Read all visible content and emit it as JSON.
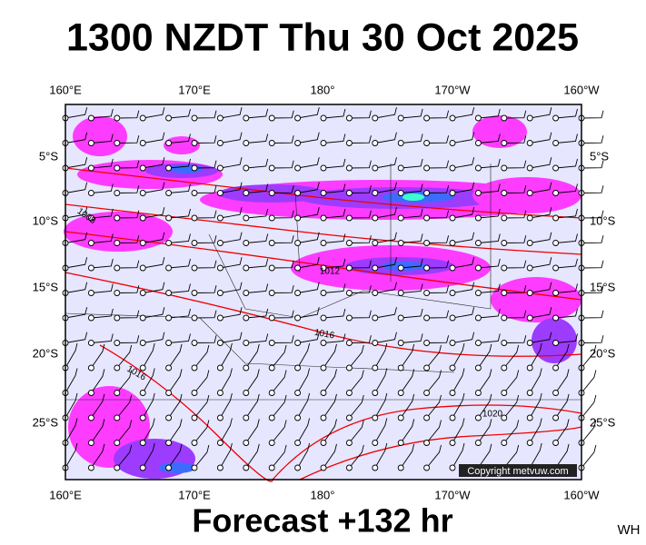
{
  "header": {
    "title": "1300 NZDT Thu 30 Oct 2025"
  },
  "axes": {
    "lon_top": [
      "160°E",
      "170°E",
      "180°",
      "170°W",
      "160°W"
    ],
    "lon_bottom": [
      "160°E",
      "170°E",
      "180°",
      "170°W",
      "160°W"
    ],
    "lat_left": [
      "5°S",
      "10°S",
      "15°S",
      "20°S",
      "25°S"
    ],
    "lat_right": [
      "5°S",
      "10°S",
      "15°S",
      "20°S",
      "25°S"
    ]
  },
  "isobars": [
    "1008",
    "1012",
    "1016",
    "1016",
    "1020"
  ],
  "copyright": "Copyright metvuw.com",
  "footer": "Forecast +132 hr",
  "corner": "WH"
}
